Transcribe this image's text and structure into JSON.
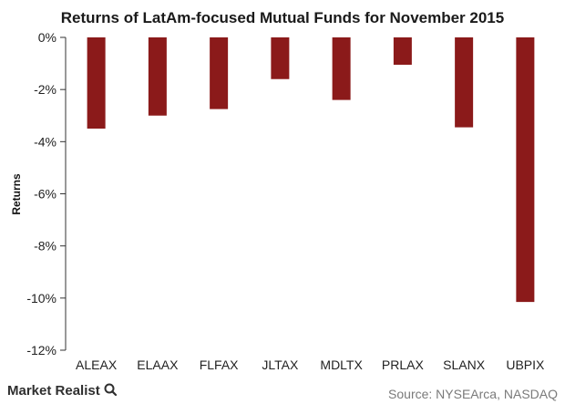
{
  "chart_data": {
    "type": "bar",
    "title": "Returns of LatAm-focused Mutual Funds for November 2015",
    "xlabel": "",
    "ylabel": "Returns",
    "categories": [
      "ALEAX",
      "ELAAX",
      "FLFAX",
      "JLTAX",
      "MDLTX",
      "PRLAX",
      "SLANX",
      "UBPIX"
    ],
    "values": [
      -3.5,
      -3.0,
      -2.75,
      -1.6,
      -2.4,
      -1.05,
      -3.45,
      -10.15
    ],
    "ylim": [
      -12,
      0
    ],
    "yticks": [
      0,
      -2,
      -4,
      -6,
      -8,
      -10,
      -12
    ],
    "ytick_labels": [
      "0%",
      "-2%",
      "-4%",
      "-6%",
      "-8%",
      "-10%",
      "-12%"
    ],
    "grid": false,
    "bar_color": "#8b1a1a"
  },
  "footer": {
    "brand": "Market Realist",
    "source": "Source: NYSEArca, NASDAQ"
  },
  "colors": {
    "axis": "#333333",
    "bar": "#8b1a1a",
    "brand_icon": "#2f2f2f"
  }
}
